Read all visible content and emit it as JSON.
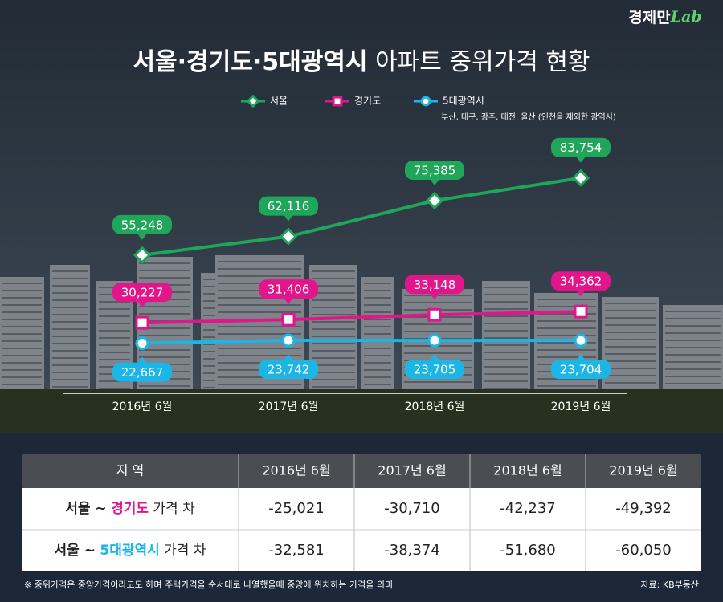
{
  "brand": [
    "경제만",
    "Lab"
  ],
  "chart_data": {
    "type": "line",
    "title_parts": [
      "서울·경기도·5대광역시",
      "아파트 중위가격 현황"
    ],
    "legend_note": "부산, 대구, 광주, 대전, 울산 (인천을 제외한 광역시)",
    "categories": [
      "2016년 6월",
      "2017년 6월",
      "2018년 6월",
      "2019년 6월"
    ],
    "ylim": [
      0,
      100000
    ],
    "series": [
      {
        "name": "서울",
        "color": "#1fa65a",
        "marker": "diamond",
        "label_side": "above",
        "values": [
          55248,
          62116,
          75385,
          83754
        ],
        "value_labels": [
          "55,248",
          "62,116",
          "75,385",
          "83,754"
        ]
      },
      {
        "name": "경기도",
        "color": "#e0168a",
        "marker": "square",
        "label_side": "above",
        "values": [
          30227,
          31406,
          33148,
          34362
        ],
        "value_labels": [
          "30,227",
          "31,406",
          "33,148",
          "34,362"
        ]
      },
      {
        "name": "5대광역시",
        "color": "#1bb5e6",
        "marker": "circle",
        "label_side": "below",
        "values": [
          22667,
          23742,
          23705,
          23704
        ],
        "value_labels": [
          "22,667",
          "23,742",
          "23,705",
          "23,704"
        ]
      }
    ]
  },
  "table": {
    "header": [
      "지 역",
      "2016년 6월",
      "2017년 6월",
      "2018년 6월",
      "2019년 6월"
    ],
    "rows": [
      {
        "label": [
          "서울 ~",
          "경기도",
          "가격 차"
        ],
        "color": "#e0168a",
        "values": [
          "-25,021",
          "-30,710",
          "-42,237",
          "-49,392"
        ]
      },
      {
        "label": [
          "서울 ~",
          "5대광역시",
          "가격 차"
        ],
        "color": "#1bb5e6",
        "values": [
          "-32,581",
          "-38,374",
          "-51,680",
          "-60,050"
        ]
      }
    ]
  },
  "footnote": "※ 중위가격은 중앙가격이라고도 하며 주택가격을 순서대로 나열했을때 중앙에 위치하는 가격을 의미",
  "source": "자료: KB부동산"
}
